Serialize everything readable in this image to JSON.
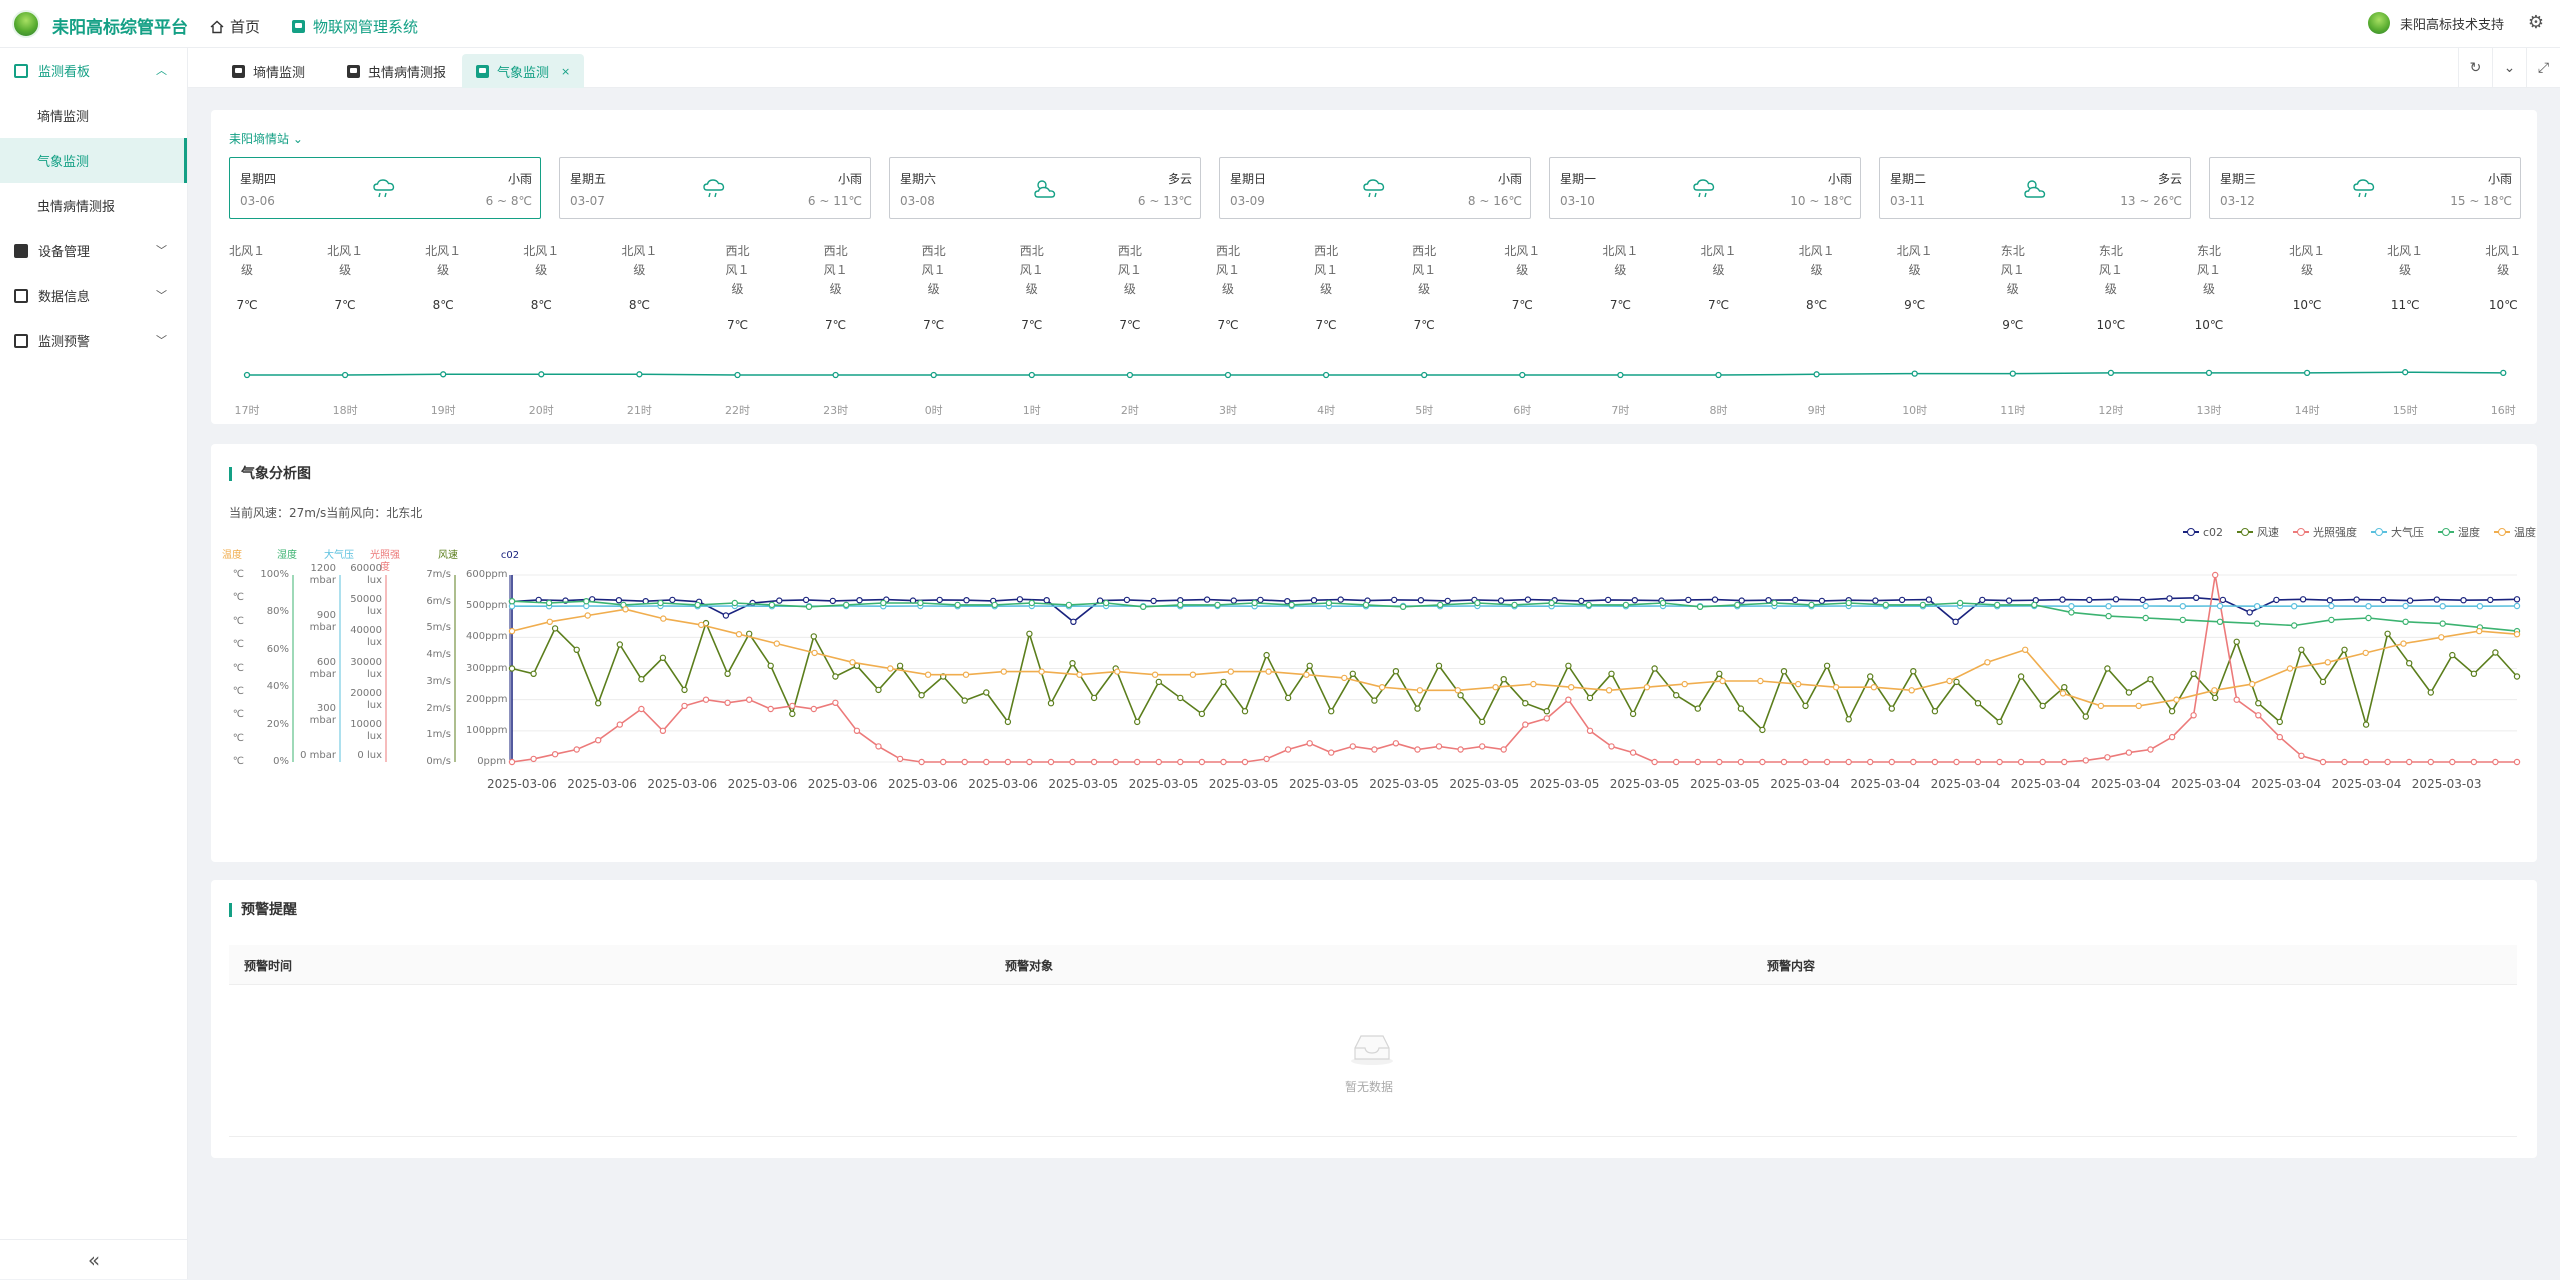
{
  "app": {
    "brand": "耒阳高标综管平台",
    "nav_home": "首页",
    "nav_system": "物联网管理系统",
    "user_name": "耒阳高标技术支持"
  },
  "sidebar": {
    "groups": [
      {
        "label": "监测看板",
        "open": true,
        "items": [
          "墒情监测",
          "气象监测",
          "虫情病情测报"
        ]
      },
      {
        "label": "设备管理"
      },
      {
        "label": "数据信息"
      },
      {
        "label": "监测预警"
      }
    ],
    "active_item": "气象监测",
    "collapse_label": "«"
  },
  "tabs": [
    {
      "label": "墒情监测",
      "active": false
    },
    {
      "label": "虫情病情测报",
      "active": false
    },
    {
      "label": "气象监测",
      "active": true
    }
  ],
  "forecast": {
    "station": "耒阳墒情站",
    "days": [
      {
        "weekday": "星期四",
        "date": "03-06",
        "cond": "小雨",
        "range": "6 ~ 8℃",
        "icon": "rain-icon",
        "selected": true
      },
      {
        "weekday": "星期五",
        "date": "03-07",
        "cond": "小雨",
        "range": "6 ~ 11℃",
        "icon": "rain-icon"
      },
      {
        "weekday": "星期六",
        "date": "03-08",
        "cond": "多云",
        "range": "6 ~ 13℃",
        "icon": "partly-cloudy-icon"
      },
      {
        "weekday": "星期日",
        "date": "03-09",
        "cond": "小雨",
        "range": "8 ~ 16℃",
        "icon": "rain-icon"
      },
      {
        "weekday": "星期一",
        "date": "03-10",
        "cond": "小雨",
        "range": "10 ~ 18℃",
        "icon": "rain-icon"
      },
      {
        "weekday": "星期二",
        "date": "03-11",
        "cond": "多云",
        "range": "13 ~ 26℃",
        "icon": "partly-cloudy-icon"
      },
      {
        "weekday": "星期三",
        "date": "03-12",
        "cond": "小雨",
        "range": "15 ~ 18℃",
        "icon": "rain-icon"
      }
    ],
    "hours": [
      {
        "wind": [
          "北风１",
          "级"
        ],
        "temp": "7℃",
        "time": "17时"
      },
      {
        "wind": [
          "北风１",
          "级"
        ],
        "temp": "7℃",
        "time": "18时"
      },
      {
        "wind": [
          "北风１",
          "级"
        ],
        "temp": "8℃",
        "time": "19时"
      },
      {
        "wind": [
          "北风１",
          "级"
        ],
        "temp": "8℃",
        "time": "20时"
      },
      {
        "wind": [
          "北风１",
          "级"
        ],
        "temp": "8℃",
        "time": "21时"
      },
      {
        "wind": [
          "西北",
          "风１",
          "级"
        ],
        "temp": "7℃",
        "time": "22时"
      },
      {
        "wind": [
          "西北",
          "风１",
          "级"
        ],
        "temp": "7℃",
        "time": "23时"
      },
      {
        "wind": [
          "西北",
          "风１",
          "级"
        ],
        "temp": "7℃",
        "time": "0时"
      },
      {
        "wind": [
          "西北",
          "风１",
          "级"
        ],
        "temp": "7℃",
        "time": "1时"
      },
      {
        "wind": [
          "西北",
          "风１",
          "级"
        ],
        "temp": "7℃",
        "time": "2时"
      },
      {
        "wind": [
          "西北",
          "风１",
          "级"
        ],
        "temp": "7℃",
        "time": "3时"
      },
      {
        "wind": [
          "西北",
          "风１",
          "级"
        ],
        "temp": "7℃",
        "time": "4时"
      },
      {
        "wind": [
          "西北",
          "风１",
          "级"
        ],
        "temp": "7℃",
        "time": "5时"
      },
      {
        "wind": [
          "北风１",
          "级"
        ],
        "temp": "7℃",
        "time": "6时"
      },
      {
        "wind": [
          "北风１",
          "级"
        ],
        "temp": "7℃",
        "time": "7时"
      },
      {
        "wind": [
          "北风１",
          "级"
        ],
        "temp": "7℃",
        "time": "8时"
      },
      {
        "wind": [
          "北风１",
          "级"
        ],
        "temp": "8℃",
        "time": "9时"
      },
      {
        "wind": [
          "北风１",
          "级"
        ],
        "temp": "9℃",
        "time": "10时"
      },
      {
        "wind": [
          "东北",
          "风１",
          "级"
        ],
        "temp": "9℃",
        "time": "11时"
      },
      {
        "wind": [
          "东北",
          "风１",
          "级"
        ],
        "temp": "10℃",
        "time": "12时"
      },
      {
        "wind": [
          "东北",
          "风１",
          "级"
        ],
        "temp": "10℃",
        "time": "13时"
      },
      {
        "wind": [
          "北风１",
          "级"
        ],
        "temp": "10℃",
        "time": "14时"
      },
      {
        "wind": [
          "北风１",
          "级"
        ],
        "temp": "11℃",
        "time": "15时"
      },
      {
        "wind": [
          "北风１",
          "级"
        ],
        "temp": "10℃",
        "time": "16时"
      }
    ],
    "line_color": "#14a085"
  },
  "analysis": {
    "title": "气象分析图",
    "wind_info": "当前风速：27m/s当前风向：北东北"
  },
  "chart_data": {
    "type": "line",
    "legend": [
      "c02",
      "风速",
      "光照强度",
      "大气压",
      "湿度",
      "温度"
    ],
    "legend_placement": "top-right",
    "colors": {
      "c02": "#1a237e",
      "风速": "#5b7e1c",
      "光照强度": "#ec7a7a",
      "大气压": "#5bc0de",
      "湿度": "#3cb371",
      "温度": "#f0ad4e"
    },
    "axes": [
      {
        "name": "温度",
        "ticks": [
          "℃",
          "℃",
          "℃",
          "℃",
          "℃",
          "℃",
          "℃",
          "℃",
          "℃"
        ]
      },
      {
        "name": "湿度",
        "ticks": [
          "100%",
          "80%",
          "60%",
          "40%",
          "20%",
          "0%"
        ],
        "range": [
          0,
          100
        ]
      },
      {
        "name": "大气压",
        "ticks": [
          "1200 mbar",
          "900 mbar",
          "600 mbar",
          "300 mbar",
          "0 mbar"
        ],
        "range": [
          0,
          1200
        ]
      },
      {
        "name": "光照强度",
        "ticks": [
          "60000 lux",
          "50000 lux",
          "40000 lux",
          "30000 lux",
          "20000 lux",
          "10000 lux",
          "0 lux"
        ],
        "range": [
          0,
          60000
        ]
      },
      {
        "name": "风速",
        "ticks": [
          "7m/s",
          "6m/s",
          "5m/s",
          "4m/s",
          "3m/s",
          "2m/s",
          "1m/s",
          "0m/s"
        ],
        "range": [
          0,
          7
        ]
      },
      {
        "name": "c02",
        "ticks": [
          "600ppm",
          "500ppm",
          "400ppm",
          "300ppm",
          "200ppm",
          "100ppm",
          "0ppm"
        ],
        "range": [
          0,
          600
        ]
      }
    ],
    "x_labels": [
      "2025-03-06",
      "2025-03-06",
      "2025-03-06",
      "2025-03-06",
      "2025-03-06",
      "2025-03-06",
      "2025-03-06",
      "2025-03-05",
      "2025-03-05",
      "2025-03-05",
      "2025-03-05",
      "2025-03-05",
      "2025-03-05",
      "2025-03-05",
      "2025-03-05",
      "2025-03-05",
      "2025-03-04",
      "2025-03-04",
      "2025-03-04",
      "2025-03-04",
      "2025-03-04",
      "2025-03-04",
      "2025-03-04",
      "2025-03-04",
      "2025-03-03"
    ],
    "series": [
      {
        "name": "c02",
        "values": [
          515,
          520,
          518,
          522,
          519,
          516,
          520,
          514,
          470,
          510,
          518,
          520,
          517,
          519,
          521,
          518,
          520,
          519,
          517,
          522,
          519,
          450,
          518,
          520,
          517,
          519,
          521,
          518,
          520,
          516,
          519,
          521,
          518,
          520,
          519,
          517,
          520,
          518,
          521,
          519,
          517,
          520,
          519,
          518,
          520,
          521,
          518,
          519,
          520,
          517,
          519,
          518,
          520,
          521,
          450,
          520,
          518,
          519,
          521,
          520,
          522,
          520,
          525,
          527,
          520,
          480,
          520,
          522,
          519,
          521,
          520,
          518,
          521,
          519,
          520,
          522
        ]
      },
      {
        "name": "风速",
        "values": [
          3.5,
          3.3,
          5.0,
          4.2,
          2.2,
          4.4,
          3.1,
          3.9,
          2.7,
          5.2,
          3.3,
          4.8,
          3.6,
          1.8,
          4.7,
          3.2,
          3.6,
          2.7,
          3.6,
          2.5,
          3.2,
          2.3,
          2.6,
          1.5,
          4.8,
          2.2,
          3.7,
          2.4,
          3.5,
          1.5,
          3.0,
          2.4,
          1.8,
          3.0,
          1.9,
          4.0,
          2.4,
          3.6,
          1.9,
          3.3,
          2.3,
          3.4,
          2.0,
          3.6,
          2.5,
          1.5,
          3.1,
          2.2,
          1.9,
          3.6,
          2.4,
          3.3,
          1.8,
          3.5,
          2.5,
          2.0,
          3.3,
          2.0,
          1.2,
          3.4,
          2.1,
          3.6,
          1.6,
          3.2,
          2.0,
          3.4,
          1.9,
          3.0,
          2.2,
          1.5,
          3.2,
          2.1,
          2.8,
          1.7,
          3.5,
          2.6,
          3.1,
          1.9,
          3.3,
          2.4,
          4.5,
          2.2,
          1.5,
          4.2,
          3.0,
          4.2,
          1.4,
          4.8,
          3.7,
          2.6,
          4.0,
          3.3,
          4.1,
          3.2
        ]
      },
      {
        "name": "光照强度",
        "values": [
          0,
          1000,
          2500,
          4000,
          7000,
          12000,
          17000,
          10000,
          18000,
          20000,
          19000,
          20000,
          17000,
          18000,
          17000,
          19000,
          10000,
          5000,
          1000,
          0,
          0,
          0,
          0,
          0,
          0,
          0,
          0,
          0,
          0,
          0,
          0,
          0,
          0,
          0,
          0,
          1000,
          4000,
          6000,
          3000,
          5000,
          4000,
          6000,
          4000,
          5000,
          4000,
          5000,
          4000,
          12000,
          14000,
          20000,
          10000,
          5000,
          3000,
          0,
          0,
          0,
          0,
          0,
          0,
          0,
          0,
          0,
          0,
          0,
          0,
          0,
          0,
          0,
          0,
          0,
          0,
          0,
          0,
          500,
          1500,
          3000,
          4000,
          8000,
          15000,
          60000,
          20000,
          15000,
          8000,
          2000,
          0,
          0,
          0,
          0,
          0,
          0,
          0,
          0,
          0,
          0
        ]
      },
      {
        "name": "大气压",
        "values": [
          1000,
          1000,
          1001,
          1000,
          1001,
          1000,
          1001,
          1000,
          1000,
          1001,
          1000,
          1001,
          1000,
          1000,
          1001,
          1000,
          1001,
          1000,
          1000,
          1001,
          1000,
          1001,
          1000,
          1000,
          1001,
          1000,
          1001,
          1000,
          1000,
          1001,
          1000,
          1001,
          1000,
          1000,
          1001,
          1000,
          1001,
          1000,
          1000,
          1001,
          1000,
          1001,
          1000,
          1000,
          1001,
          1000,
          1001,
          1000,
          1000,
          1001,
          1000,
          1001,
          1000,
          1000,
          1001
        ]
      },
      {
        "name": "湿度",
        "values": [
          86,
          85,
          86,
          84,
          85,
          84,
          85,
          84,
          83,
          84,
          85,
          85,
          84,
          84,
          85,
          84,
          85,
          83,
          84,
          84,
          85,
          84,
          85,
          84,
          83,
          84,
          85,
          84,
          85,
          84,
          84,
          85,
          83,
          84,
          85,
          84,
          85,
          84,
          84,
          85,
          84,
          84,
          80,
          78,
          77,
          76,
          75,
          74,
          73,
          76,
          77,
          75,
          74,
          72,
          70
        ]
      },
      {
        "name": "温度",
        "values": [
          8.2,
          8.5,
          8.7,
          8.9,
          8.6,
          8.4,
          8.1,
          7.8,
          7.5,
          7.2,
          7.0,
          6.8,
          6.8,
          6.9,
          6.9,
          6.8,
          6.9,
          6.8,
          6.8,
          6.9,
          6.9,
          6.8,
          6.7,
          6.4,
          6.3,
          6.3,
          6.4,
          6.5,
          6.4,
          6.3,
          6.4,
          6.5,
          6.6,
          6.6,
          6.5,
          6.4,
          6.4,
          6.3,
          6.6,
          7.2,
          7.6,
          6.2,
          5.8,
          5.8,
          6.0,
          6.3,
          6.5,
          7.0,
          7.2,
          7.5,
          7.8,
          8.0,
          8.2,
          8.1
        ]
      }
    ]
  },
  "warnings": {
    "title": "预警提醒",
    "columns": [
      "预警时间",
      "预警对象",
      "预警内容"
    ],
    "empty_text": "暂无数据"
  }
}
